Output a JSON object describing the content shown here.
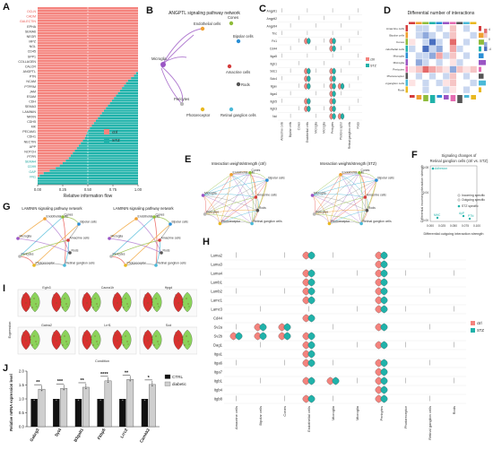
{
  "panel_labels": [
    "A",
    "B",
    "C",
    "D",
    "E",
    "F",
    "G",
    "H",
    "I",
    "J"
  ],
  "panelA": {
    "xlabel": "Relative information flow",
    "xticks": [
      "0.00",
      "0.25",
      "0.50",
      "0.75",
      "1.00"
    ],
    "legend": [
      {
        "name": "ctrl",
        "color": "#f4837d"
      },
      {
        "name": "STZ",
        "color": "#20b2aa"
      }
    ],
    "chart_data": {
      "type": "bar",
      "series": [
        {
          "name": "ctrl"
        },
        {
          "name": "STZ"
        }
      ],
      "categories_visible": [
        "OCLN",
        "CADM",
        "GALECTIN",
        "EPHA",
        "SEMA6",
        "NEGR",
        "MPZ",
        "NGL",
        "CD45",
        "SPP1",
        "COLLAGEN",
        "CALCR",
        "ANGPTL",
        "PTN",
        "NCAM",
        "PTPRM",
        "JAM",
        "ESAM",
        "CDH",
        "SEMA3",
        "LAMININ",
        "NRXN",
        "CDH5",
        "MK",
        "PECAM1",
        "CDH1",
        "NECTIN",
        "APP",
        "NOTCH",
        "PTPR",
        "SEMA4",
        "CD99",
        "GAP",
        "FN1"
      ],
      "ctrl_values": [
        1,
        1,
        1,
        1,
        1,
        1,
        1,
        1,
        1,
        1,
        1,
        1,
        1,
        1,
        1,
        1,
        1,
        1,
        1,
        1,
        1,
        1,
        1,
        1,
        1,
        1,
        0.98,
        0.96,
        0.93,
        0.9,
        0.88,
        0.86,
        0.84,
        0.82,
        0.8,
        0.78,
        0.76,
        0.74,
        0.72,
        0.7,
        0.68,
        0.66,
        0.64,
        0.62,
        0.6,
        0.58,
        0.56,
        0.54,
        0.52,
        0.5,
        0.49,
        0.48,
        0.47,
        0.45,
        0.43,
        0.41,
        0.39,
        0.37,
        0.35,
        0.33,
        0.31,
        0.28,
        0.25,
        0.22,
        0.18,
        0.12,
        0.06,
        0.02,
        0,
        0,
        0
      ],
      "xlim": [
        0,
        1
      ]
    }
  },
  "panelB": {
    "title": "ANGPTL signaling pathway network",
    "nodes": [
      "Endothelial cells",
      "Cones",
      "Bipolar cells",
      "Microglia",
      "Amacrine cells",
      "Pericytes",
      "Rods",
      "Photoreceptor",
      "Retinal ganglion cells"
    ]
  },
  "panelC": {
    "genes": [
      "Angptl1",
      "Angptl2",
      "Angptl4",
      "Tnc",
      "Fn1",
      "Cd44",
      "Itga5",
      "Itgb1",
      "Sdc1",
      "Sdc4",
      "Itgav",
      "Itga4",
      "Itgb5",
      "Itgb3",
      "Ncl"
    ],
    "cells": [
      "Amacrine cells",
      "Bipolar cells",
      "Cones",
      "Endothelial cells",
      "Microglia",
      "Microglia",
      "Pericytes",
      "Photoreceptor",
      "Retinal ganglion cells",
      "Rods"
    ],
    "legend": [
      {
        "name": "ctrl",
        "color": "#f4837d"
      },
      {
        "name": "STZ",
        "color": "#20b2aa"
      }
    ]
  },
  "panelD": {
    "title": "Differential number of interactions",
    "rows": [
      "Amacrine cells",
      "Bipolar cells",
      "Cones",
      "Endothelial cells",
      "Microglia",
      "Microglia",
      "Pericytes",
      "Photoreceptor",
      "Retinal ganglion cells",
      "Rods"
    ],
    "scale": [
      "4",
      "0",
      "-4"
    ]
  },
  "panelE": {
    "titles": [
      "Interaction weights/strength (ctrl)",
      "Interaction weights/strength (STZ)"
    ],
    "nodes": [
      "Endothelial cells",
      "Cones",
      "Bipolar cells",
      "Microglia",
      "Amacrine cells",
      "Pericytes",
      "Rods",
      "Photoreceptor",
      "Retinal ganglion cells"
    ]
  },
  "panelF": {
    "title": "Signaling changes of",
    "subtitle": "Retinal ganglion cells (ctrl vs. STZ)",
    "ylabel": "Differential incoming interaction strength",
    "xlabel": "Differential outgoing interaction strength",
    "xticks": [
      "0.000",
      "0.025",
      "0.050",
      "0.075",
      "0.100"
    ],
    "yticks": [
      "0.00",
      "0.04",
      "0.08"
    ],
    "legend": [
      "Incoming specific",
      "Outgoing specific",
      "STZ specific"
    ],
    "point_labels": [
      "Adhesion",
      "MHC",
      "ApP",
      "PTN"
    ]
  },
  "panelG": {
    "titles": [
      "LAMININ signaling pathway network",
      "LAMININ signaling pathway network"
    ],
    "nodes": [
      "Endothelial cells",
      "Cones",
      "Bipolar cells",
      "Microglia",
      "Amacrine cells",
      "Pericytes",
      "Rods",
      "Photoreceptor",
      "Retinal ganglion cells"
    ]
  },
  "panelH": {
    "genes": [
      "Lama2",
      "Lama3",
      "Lama4",
      "Lamb1",
      "Lamb2",
      "Lamc1",
      "Lamc3",
      "Cd44",
      "Sv2a",
      "Sv2b",
      "Dag1",
      "Itga1",
      "Itga6",
      "Itga7",
      "Itgb1",
      "Itgb4",
      "Itgb8"
    ],
    "cells": [
      "Amacrine cells",
      "Bipolar cells",
      "Cones",
      "Endothelial cells",
      "Microglia",
      "Microglia",
      "Pericytes",
      "Photoreceptor",
      "Retinal ganglion cells",
      "Rods"
    ],
    "legend": [
      {
        "name": "ctrl",
        "color": "#f4837d"
      },
      {
        "name": "STZ",
        "color": "#20b2aa"
      }
    ]
  },
  "panelI": {
    "ylabel": "Expression",
    "xlabel": "Condition",
    "titles": [
      "Egln3",
      "Cacna1h",
      "Hpgd",
      "Gabra2",
      "Lrrf1",
      "Sod"
    ]
  },
  "panelJ": {
    "ylabel": "Relative mRNA expression level",
    "yticks": [
      "0.0",
      "0.5",
      "1.0",
      "1.5",
      "2.0"
    ],
    "legend": [
      {
        "name": "CTRL",
        "color": "#111111"
      },
      {
        "name": "diabetic",
        "color": "#cfcfcf"
      }
    ],
    "chart_data": {
      "type": "bar",
      "categories": [
        "Gabrg3",
        "Syt4",
        "B3galt1",
        "Fkbp5",
        "Lrrc2",
        "Camkk2"
      ],
      "series": [
        {
          "name": "CTRL",
          "values": [
            1.0,
            1.0,
            1.0,
            1.0,
            1.0,
            1.0
          ]
        },
        {
          "name": "diabetic",
          "values": [
            1.35,
            1.38,
            1.42,
            1.65,
            1.7,
            1.52
          ]
        }
      ],
      "significance": [
        "**",
        "***",
        "**",
        "****",
        "**",
        "*"
      ],
      "ylim": [
        0,
        2.0
      ]
    }
  }
}
